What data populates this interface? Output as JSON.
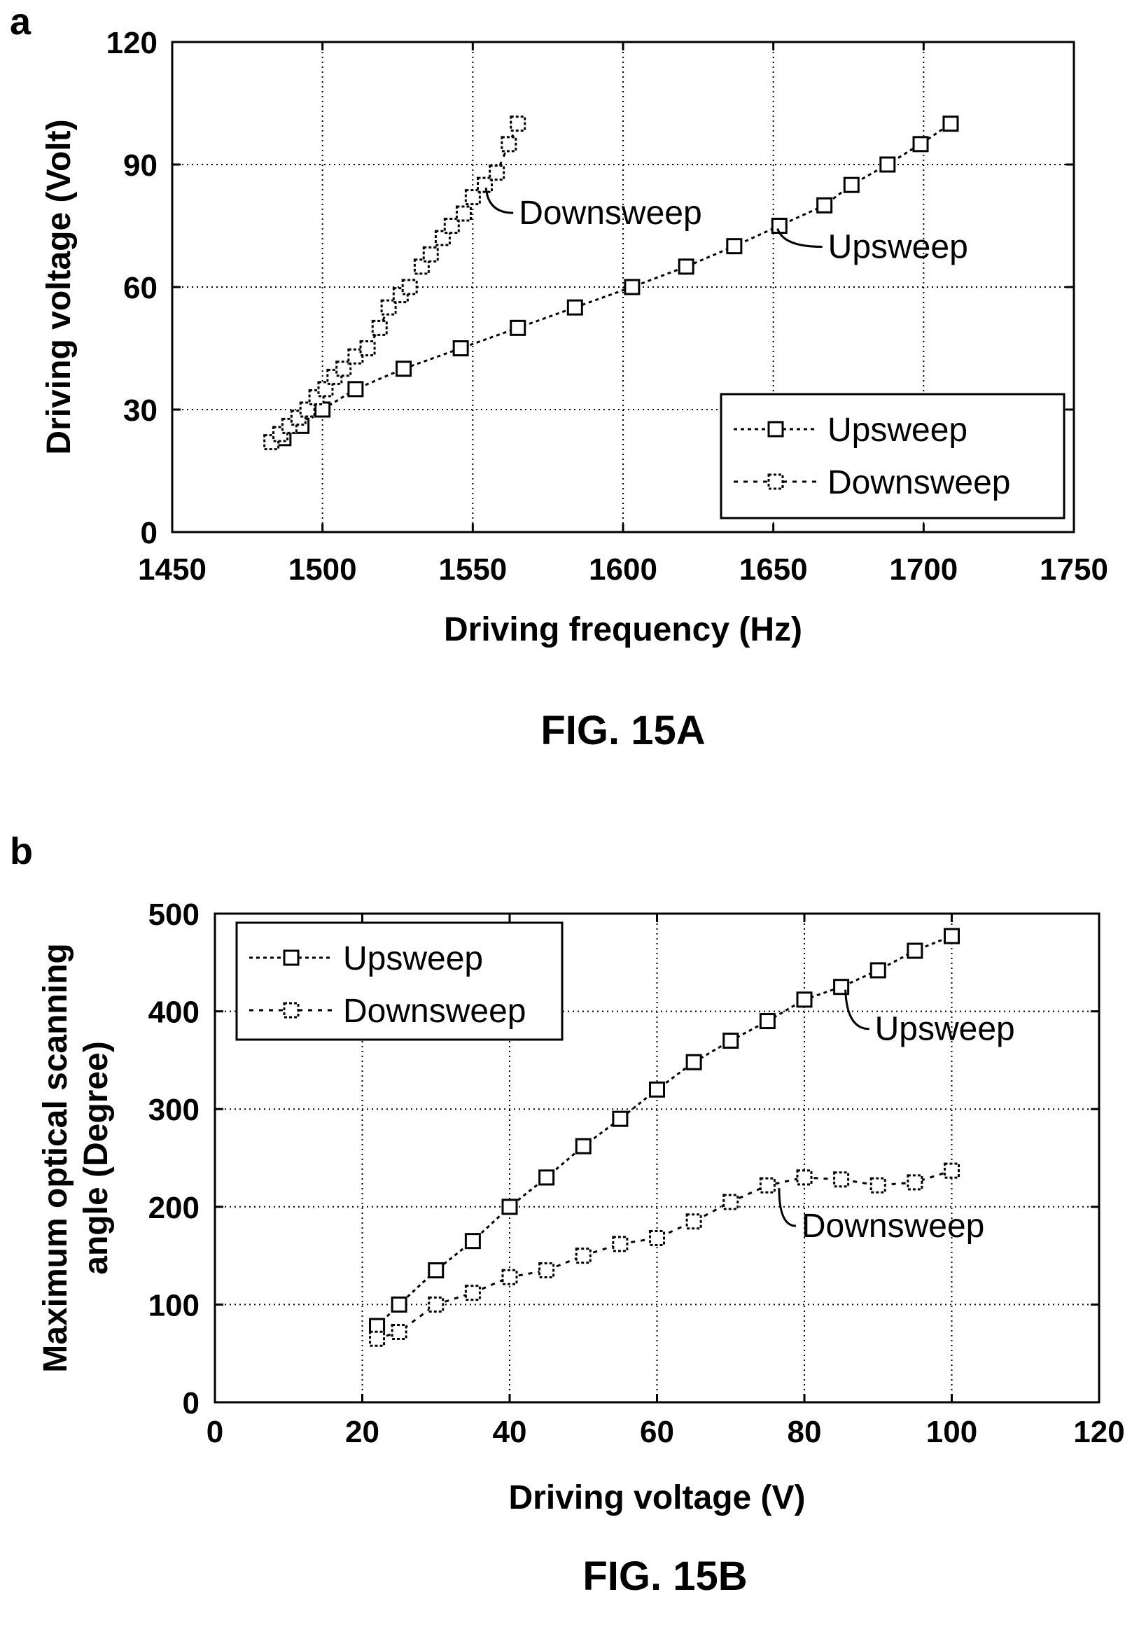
{
  "figures": [
    {
      "letter": "a",
      "caption": "FIG. 15A"
    },
    {
      "letter": "b",
      "caption": "FIG. 15B"
    }
  ],
  "chart_data": [
    {
      "type": "line",
      "xlabel": "Driving frequency (Hz)",
      "ylabel": "Driving voltage (Volt)",
      "xlim": [
        1450,
        1750
      ],
      "ylim": [
        0,
        120
      ],
      "xticks": [
        1450,
        1500,
        1550,
        1600,
        1650,
        1700,
        1750
      ],
      "yticks": [
        0,
        30,
        60,
        90,
        120
      ],
      "grid": true,
      "legend_position": "bottom-right",
      "series": [
        {
          "name": "Upsweep",
          "marker": "square",
          "x": [
            1487,
            1493,
            1500,
            1511,
            1527,
            1546,
            1565,
            1584,
            1603,
            1621,
            1637,
            1652,
            1667,
            1676,
            1688,
            1699,
            1709
          ],
          "y": [
            23,
            26,
            30,
            35,
            40,
            45,
            50,
            55,
            60,
            65,
            70,
            75,
            80,
            85,
            90,
            95,
            100
          ]
        },
        {
          "name": "Downsweep",
          "marker": "dashed-square",
          "x": [
            1483,
            1486,
            1489,
            1492,
            1495,
            1498,
            1501,
            1504,
            1507,
            1511,
            1515,
            1519,
            1522,
            1526,
            1529,
            1533,
            1536,
            1540,
            1543,
            1547,
            1550,
            1554,
            1558,
            1562,
            1565
          ],
          "y": [
            22,
            24,
            26,
            28,
            30,
            33,
            35,
            38,
            40,
            43,
            45,
            50,
            55,
            58,
            60,
            65,
            68,
            72,
            75,
            78,
            82,
            85,
            88,
            95,
            100
          ]
        }
      ],
      "annotations": [
        {
          "text": "Downsweep",
          "x": 1553,
          "y": 85
        },
        {
          "text": "Upsweep",
          "x": 1650,
          "y": 75
        }
      ]
    },
    {
      "type": "line",
      "xlabel": "Driving voltage (V)",
      "ylabel": "Maximum optical scanning angle (Degree)",
      "ylabel_lines": [
        "Maximum optical scanning",
        "angle (Degree)"
      ],
      "xlim": [
        0,
        120
      ],
      "ylim": [
        0,
        500
      ],
      "xticks": [
        0,
        20,
        40,
        60,
        80,
        100,
        120
      ],
      "yticks": [
        0,
        100,
        200,
        300,
        400,
        500
      ],
      "grid": true,
      "legend_position": "top-left",
      "series": [
        {
          "name": "Upsweep",
          "marker": "square",
          "x": [
            22,
            25,
            30,
            35,
            40,
            45,
            50,
            55,
            60,
            65,
            70,
            75,
            80,
            85,
            90,
            95,
            100
          ],
          "y": [
            78,
            100,
            135,
            165,
            200,
            230,
            262,
            290,
            320,
            348,
            370,
            390,
            412,
            425,
            442,
            462,
            477
          ]
        },
        {
          "name": "Downsweep",
          "marker": "dashed-square",
          "x": [
            22,
            25,
            30,
            35,
            40,
            45,
            50,
            55,
            60,
            65,
            70,
            75,
            80,
            85,
            90,
            95,
            100
          ],
          "y": [
            65,
            72,
            100,
            112,
            128,
            135,
            150,
            162,
            168,
            185,
            205,
            222,
            230,
            228,
            222,
            225,
            237
          ]
        }
      ],
      "annotations": [
        {
          "text": "Upsweep",
          "x": 85,
          "y": 425
        },
        {
          "text": "Downsweep",
          "x": 76,
          "y": 222
        }
      ]
    }
  ]
}
